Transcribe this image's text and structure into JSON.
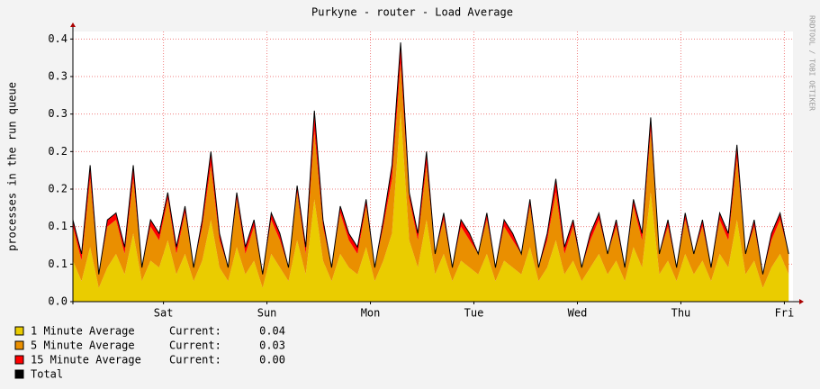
{
  "chart_data": {
    "type": "stacked_area",
    "title": "Purkyne - router  - Load Average",
    "y_label": "processes in the run queue",
    "watermark": "RRDTOOL / TOBI OETIKER",
    "current_label": "Current:",
    "x": [
      0,
      2,
      4,
      6,
      8,
      10,
      12,
      14,
      16,
      18,
      20,
      22,
      24,
      26,
      28,
      30,
      32,
      34,
      36,
      38,
      40,
      42,
      44,
      46,
      48,
      50,
      52,
      54,
      56,
      58,
      60,
      62,
      64,
      66,
      68,
      70,
      72,
      74,
      76,
      78,
      80,
      82,
      84,
      86,
      88,
      90,
      92,
      94,
      96,
      98,
      100,
      102,
      104,
      106,
      108,
      110,
      112,
      114,
      116,
      118,
      120,
      122,
      124,
      126,
      128,
      130,
      132,
      134,
      136,
      138,
      140,
      142,
      144,
      146,
      148,
      150,
      152,
      154,
      156,
      158,
      160,
      162,
      164,
      166
    ],
    "xlim": [
      0,
      167
    ],
    "xticks": [
      {
        "value": 21,
        "label": "Sat"
      },
      {
        "value": 45,
        "label": "Sun"
      },
      {
        "value": 69,
        "label": "Mon"
      },
      {
        "value": 93,
        "label": "Tue"
      },
      {
        "value": 117,
        "label": "Wed"
      },
      {
        "value": 141,
        "label": "Thu"
      },
      {
        "value": 165,
        "label": "Fri"
      }
    ],
    "ylim": [
      0,
      0.396
    ],
    "yticks": [
      {
        "value": 0,
        "label": "0.0"
      },
      {
        "value": 0.055,
        "label": "0.1"
      },
      {
        "value": 0.11,
        "label": "0.1"
      },
      {
        "value": 0.165,
        "label": "0.2"
      },
      {
        "value": 0.22,
        "label": "0.2"
      },
      {
        "value": 0.275,
        "label": "0.3"
      },
      {
        "value": 0.33,
        "label": "0.3"
      },
      {
        "value": 0.385,
        "label": "0.4"
      }
    ],
    "grid": true,
    "series": [
      {
        "name": "1 Minute Average",
        "color": "#eacc00",
        "current": {
          "value": 0.04,
          "label": "0.04"
        },
        "values": [
          0.06,
          0.03,
          0.08,
          0.02,
          0.05,
          0.07,
          0.04,
          0.1,
          0.03,
          0.06,
          0.05,
          0.09,
          0.04,
          0.07,
          0.03,
          0.06,
          0.12,
          0.05,
          0.03,
          0.08,
          0.04,
          0.06,
          0.02,
          0.07,
          0.05,
          0.03,
          0.09,
          0.04,
          0.15,
          0.06,
          0.03,
          0.07,
          0.05,
          0.04,
          0.08,
          0.03,
          0.06,
          0.1,
          0.28,
          0.09,
          0.05,
          0.12,
          0.04,
          0.07,
          0.03,
          0.06,
          0.05,
          0.04,
          0.07,
          0.03,
          0.06,
          0.05,
          0.04,
          0.08,
          0.03,
          0.05,
          0.09,
          0.04,
          0.06,
          0.03,
          0.05,
          0.07,
          0.04,
          0.06,
          0.03,
          0.08,
          0.05,
          0.16,
          0.04,
          0.06,
          0.03,
          0.07,
          0.04,
          0.06,
          0.03,
          0.07,
          0.05,
          0.12,
          0.04,
          0.06,
          0.02,
          0.05,
          0.07,
          0.04
        ]
      },
      {
        "name": "5 Minute Average",
        "color": "#ea8f00",
        "current": {
          "value": 0.03,
          "label": "0.03"
        },
        "values": [
          0.05,
          0.03,
          0.1,
          0.02,
          0.06,
          0.05,
          0.03,
          0.08,
          0.02,
          0.05,
          0.04,
          0.06,
          0.03,
          0.06,
          0.02,
          0.05,
          0.08,
          0.04,
          0.02,
          0.07,
          0.03,
          0.05,
          0.02,
          0.05,
          0.04,
          0.02,
          0.07,
          0.03,
          0.1,
          0.05,
          0.02,
          0.06,
          0.04,
          0.03,
          0.06,
          0.02,
          0.05,
          0.08,
          0.07,
          0.06,
          0.04,
          0.08,
          0.03,
          0.05,
          0.02,
          0.05,
          0.04,
          0.03,
          0.05,
          0.02,
          0.05,
          0.04,
          0.03,
          0.06,
          0.02,
          0.04,
          0.07,
          0.03,
          0.05,
          0.02,
          0.04,
          0.05,
          0.03,
          0.05,
          0.02,
          0.06,
          0.04,
          0.09,
          0.03,
          0.05,
          0.02,
          0.05,
          0.03,
          0.05,
          0.02,
          0.05,
          0.04,
          0.09,
          0.03,
          0.05,
          0.02,
          0.04,
          0.05,
          0.03
        ]
      },
      {
        "name": "15 Minute Average",
        "color": "#ff0000",
        "current": {
          "value": 0,
          "label": "0.00"
        },
        "values": [
          0.01,
          0.01,
          0.02,
          0.0,
          0.01,
          0.01,
          0.01,
          0.02,
          0.0,
          0.01,
          0.01,
          0.01,
          0.01,
          0.01,
          0.0,
          0.01,
          0.02,
          0.01,
          0.0,
          0.01,
          0.01,
          0.01,
          0.0,
          0.01,
          0.01,
          0.0,
          0.01,
          0.01,
          0.03,
          0.01,
          0.0,
          0.01,
          0.01,
          0.01,
          0.01,
          0.0,
          0.01,
          0.02,
          0.03,
          0.01,
          0.01,
          0.02,
          0.0,
          0.01,
          0.0,
          0.01,
          0.01,
          0.0,
          0.01,
          0.0,
          0.01,
          0.01,
          0.0,
          0.01,
          0.0,
          0.01,
          0.02,
          0.01,
          0.01,
          0.0,
          0.01,
          0.01,
          0.0,
          0.01,
          0.0,
          0.01,
          0.01,
          0.02,
          0.0,
          0.01,
          0.0,
          0.01,
          0.0,
          0.01,
          0.0,
          0.01,
          0.01,
          0.02,
          0.0,
          0.01,
          0.0,
          0.01,
          0.01,
          0.0
        ]
      },
      {
        "name": "Total",
        "color": "#000000",
        "outline_of_stack": true
      }
    ]
  }
}
